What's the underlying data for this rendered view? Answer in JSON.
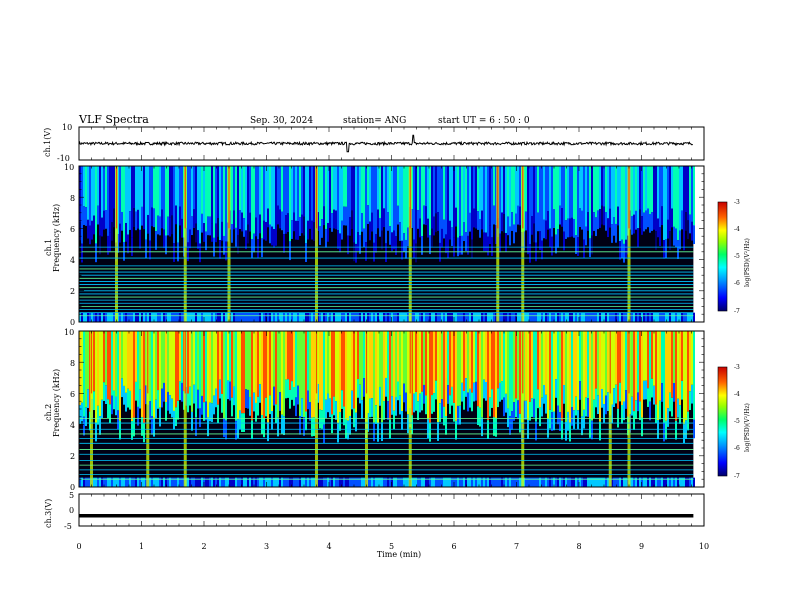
{
  "header": {
    "title": "VLF Spectra",
    "date": "Sep. 30, 2024",
    "station": "station= ANG",
    "start": "start  UT  =   6  : 50 : 0"
  },
  "chart_data": [
    {
      "type": "line",
      "panel": "ch1-waveform",
      "ylabel": "ch.1(V)",
      "ylim": [
        -10,
        10
      ],
      "yticks": [
        "10",
        "-10"
      ],
      "x_range": [
        0,
        10
      ],
      "x_data_end": 9.83,
      "baseline": 0,
      "spikes": [
        {
          "x": 4.3,
          "y": -5
        },
        {
          "x": 5.35,
          "y": 5
        }
      ],
      "line_color": "#000000"
    },
    {
      "type": "heatmap",
      "panel": "ch1-spectrogram",
      "ylabel_1": "ch.1",
      "ylabel_2": "Frequency (kHz)",
      "ylim": [
        0,
        10
      ],
      "yticks": [
        "0",
        "2",
        "4",
        "6",
        "8",
        "10"
      ],
      "x_range": [
        0,
        10
      ],
      "x_data_end": 9.83,
      "colorbar": {
        "label": "log(PSD)(V²/Hz)",
        "range": [
          -7,
          -3
        ],
        "ticks": [
          "-3",
          "-4",
          "-5",
          "-6",
          "-7"
        ]
      },
      "interference_lines_khz": [
        0.4,
        0.6,
        0.8,
        1.0,
        1.2,
        1.4,
        1.6,
        1.8,
        2.0,
        2.2,
        2.4,
        2.6,
        2.8,
        3.0,
        3.2,
        3.4,
        3.6,
        4.1,
        4.5,
        4.8
      ],
      "bright_bursts_min": [
        0.6,
        1.7,
        2.4,
        3.8,
        5.3,
        6.7,
        7.1,
        8.8
      ]
    },
    {
      "type": "heatmap",
      "panel": "ch2-spectrogram",
      "ylabel_1": "ch.2",
      "ylabel_2": "Frequency (kHz)",
      "ylim": [
        0,
        10
      ],
      "yticks": [
        "0",
        "2",
        "4",
        "6",
        "8",
        "10"
      ],
      "x_range": [
        0,
        10
      ],
      "x_data_end": 9.83,
      "colorbar": {
        "label": "log(PSD)(V²/Hz)",
        "range": [
          -7,
          -3
        ],
        "ticks": [
          "-3",
          "-4",
          "-5",
          "-6",
          "-7"
        ]
      },
      "interference_lines_khz": [
        0.5,
        0.8,
        1.1,
        1.4,
        1.7,
        2.1,
        2.4,
        2.8,
        3.1,
        3.4,
        3.7,
        4.1,
        4.4
      ],
      "bright_bursts_min": [
        0.2,
        1.1,
        1.7,
        3.8,
        4.6,
        5.3,
        7.1,
        8.5,
        8.8
      ]
    },
    {
      "type": "line",
      "panel": "ch3-waveform",
      "ylabel": "ch.3(V)",
      "ylim": [
        -5,
        5
      ],
      "yticks": [
        "5",
        "0",
        "-5"
      ],
      "x_range": [
        0,
        10
      ],
      "x_data_end": 9.83,
      "baseline": -1.8,
      "line_color": "#000000"
    }
  ],
  "x_axis": {
    "label": "Time  (min)",
    "ticks": [
      "0",
      "1",
      "2",
      "3",
      "4",
      "5",
      "6",
      "7",
      "8",
      "9",
      "10"
    ]
  },
  "colors": {
    "colormap": [
      "#00006a",
      "#0000c8",
      "#0050ff",
      "#00c8ff",
      "#00ffb4",
      "#64ff32",
      "#d2ff00",
      "#ffd200",
      "#ff5000",
      "#c80000"
    ],
    "background_low": "#000014"
  }
}
